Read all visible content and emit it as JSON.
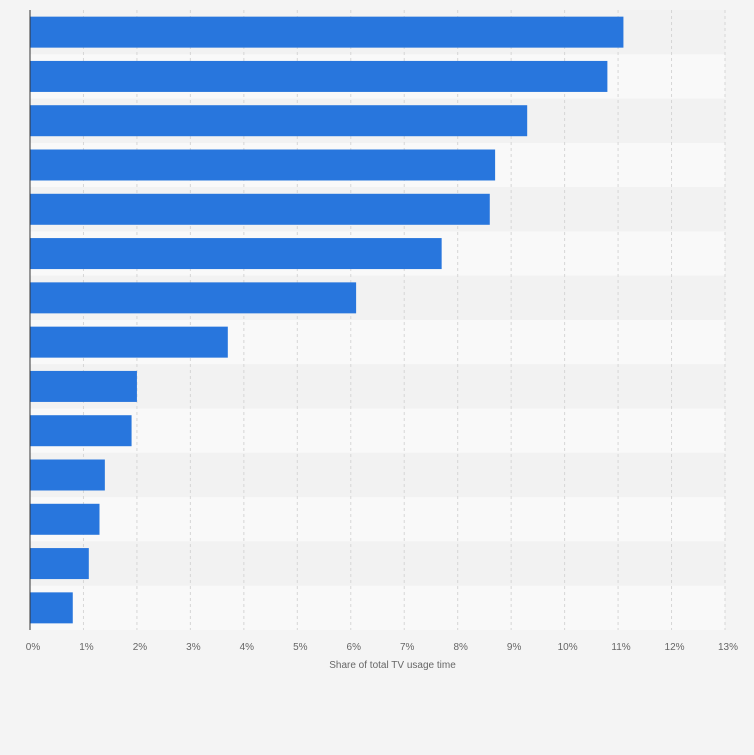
{
  "chart_data": {
    "type": "bar",
    "orientation": "horizontal",
    "categories": [
      "",
      "",
      "",
      "",
      "",
      "",
      "",
      "",
      "",
      "",
      "",
      "",
      "",
      ""
    ],
    "values": [
      11.1,
      10.8,
      9.3,
      8.7,
      8.6,
      7.7,
      6.1,
      3.7,
      2.0,
      1.9,
      1.4,
      1.3,
      1.1,
      0.8
    ],
    "xlabel": "Share of total TV usage time",
    "ylabel": "",
    "xlim": [
      0,
      13
    ],
    "x_ticks": [
      0,
      1,
      2,
      3,
      4,
      5,
      6,
      7,
      8,
      9,
      10,
      11,
      12,
      13
    ],
    "x_tick_labels": [
      "0%",
      "1%",
      "2%",
      "3%",
      "4%",
      "5%",
      "6%",
      "7%",
      "8%",
      "9%",
      "10%",
      "11%",
      "12%",
      "13%"
    ],
    "grid": true,
    "colors": {
      "bar": "#2876dd",
      "background": "#f4f4f4",
      "band_light": "#f9f9f9",
      "band_dark": "#f2f2f2",
      "gridline": "#d6d6d6",
      "axis": "#333333",
      "tick_text": "#666666"
    }
  }
}
